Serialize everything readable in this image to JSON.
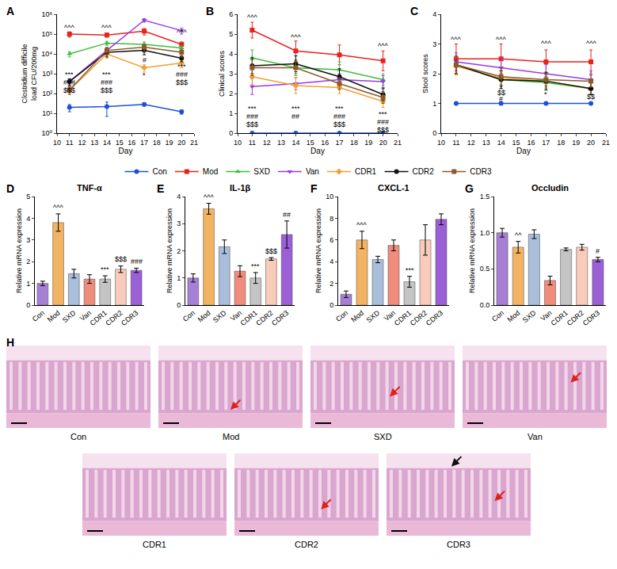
{
  "chart_data": [
    {
      "letter": "A",
      "type": "line",
      "xlabel": "Day",
      "ylabel": [
        "Clostridium difficile",
        "load CFU/200mg"
      ],
      "log": "y",
      "grid": false,
      "legend": "bottom",
      "xlim": [
        10,
        21
      ],
      "xticks": [
        10,
        11,
        12,
        13,
        14,
        15,
        16,
        17,
        18,
        19,
        20,
        21
      ],
      "ylim": [
        1,
        1000000
      ],
      "yticks": [
        {
          "value": 1,
          "label": "10⁰"
        },
        {
          "value": 10,
          "label": "10¹"
        },
        {
          "value": 100,
          "label": "10²"
        },
        {
          "value": 1000,
          "label": "10³"
        },
        {
          "value": 10000,
          "label": "10⁴"
        },
        {
          "value": 100000,
          "label": "10⁵"
        },
        {
          "value": 1000000,
          "label": "10⁶"
        }
      ],
      "x": [
        11,
        14,
        17,
        20
      ],
      "series": [
        {
          "name": "Con",
          "color": "#1f4fd8",
          "marker": "circle",
          "values": [
            20,
            22,
            28,
            12
          ],
          "errors": [
            8,
            15,
            5,
            3
          ]
        },
        {
          "name": "Mod",
          "color": "#e8231c",
          "marker": "square",
          "values": [
            100000,
            90000,
            140000,
            30000
          ],
          "errors": [
            30000,
            20000,
            50000,
            10000
          ]
        },
        {
          "name": "SXD",
          "color": "#3cbf3c",
          "marker": "triangle-up",
          "values": [
            10000,
            35000,
            30000,
            20000
          ],
          "errors": [
            3000,
            8000,
            10000,
            5000
          ]
        },
        {
          "name": "Van",
          "color": "#9b3be0",
          "marker": "triangle-down",
          "values": [
            400,
            15000,
            500000,
            150000
          ],
          "errors": [
            150,
            6000,
            100000,
            50000
          ]
        },
        {
          "name": "CDR1",
          "color": "#f0a030",
          "marker": "diamond",
          "values": [
            150,
            10000,
            2000,
            3500
          ],
          "errors": [
            60,
            4000,
            800,
            1500
          ]
        },
        {
          "name": "CDR2",
          "color": "#111111",
          "marker": "circle",
          "values": [
            400,
            12000,
            15000,
            6000
          ],
          "errors": [
            150,
            5000,
            6000,
            2000
          ]
        },
        {
          "name": "CDR3",
          "color": "#8b5a2b",
          "marker": "square",
          "values": [
            150,
            15000,
            22000,
            12000
          ],
          "errors": [
            60,
            6000,
            9000,
            5000
          ]
        }
      ],
      "annotations": [
        {
          "x": 11,
          "y": 200000,
          "text": "^^^"
        },
        {
          "x": 11,
          "y": 900,
          "text": "***"
        },
        {
          "x": 11,
          "y": 350,
          "text": "###"
        },
        {
          "x": 11,
          "y": 140,
          "text": "$$$"
        },
        {
          "x": 14,
          "y": 200000,
          "text": "^^^"
        },
        {
          "x": 14,
          "y": 900,
          "text": "***"
        },
        {
          "x": 14,
          "y": 350,
          "text": "###"
        },
        {
          "x": 14,
          "y": 140,
          "text": "$$$"
        },
        {
          "x": 17,
          "y": 5000,
          "text": "#"
        },
        {
          "x": 17,
          "y": 800,
          "text": "*"
        },
        {
          "x": 20,
          "y": 120000,
          "text": "^^^"
        },
        {
          "x": 20,
          "y": 2200,
          "text": "***"
        },
        {
          "x": 20,
          "y": 900,
          "text": "###"
        },
        {
          "x": 20,
          "y": 350,
          "text": "$$$"
        }
      ]
    },
    {
      "letter": "B",
      "type": "line",
      "xlabel": "Day",
      "ylabel": "Clinical scores",
      "grid": false,
      "xlim": [
        10,
        21
      ],
      "xticks": [
        10,
        11,
        12,
        13,
        14,
        15,
        16,
        17,
        18,
        19,
        20,
        21
      ],
      "ylim": [
        0,
        6
      ],
      "yticks": [
        0,
        1,
        2,
        3,
        4,
        5,
        6
      ],
      "x": [
        11,
        14,
        17,
        20
      ],
      "series": [
        {
          "name": "Con",
          "color": "#1f4fd8",
          "marker": "circle",
          "values": [
            0,
            0,
            0,
            0
          ],
          "errors": [
            0,
            0,
            0,
            0
          ]
        },
        {
          "name": "Mod",
          "color": "#e8231c",
          "marker": "square",
          "values": [
            5.2,
            4.15,
            3.95,
            3.65
          ],
          "errors": [
            0.4,
            0.5,
            0.5,
            0.5
          ]
        },
        {
          "name": "SXD",
          "color": "#3cbf3c",
          "marker": "triangle-up",
          "values": [
            3.8,
            3.3,
            3.2,
            2.7
          ],
          "errors": [
            0.4,
            0.4,
            0.4,
            0.3
          ]
        },
        {
          "name": "Van",
          "color": "#9b3be0",
          "marker": "triangle-down",
          "values": [
            2.35,
            2.5,
            2.7,
            2.6
          ],
          "errors": [
            0.4,
            0.3,
            0.3,
            0.3
          ]
        },
        {
          "name": "CDR1",
          "color": "#f0a030",
          "marker": "diamond",
          "values": [
            2.85,
            2.4,
            2.3,
            1.6
          ],
          "errors": [
            0.4,
            0.4,
            0.3,
            0.3
          ]
        },
        {
          "name": "CDR2",
          "color": "#111111",
          "marker": "circle",
          "values": [
            3.4,
            3.5,
            2.85,
            1.95
          ],
          "errors": [
            0.4,
            0.4,
            0.4,
            0.3
          ]
        },
        {
          "name": "CDR3",
          "color": "#8b5a2b",
          "marker": "square",
          "values": [
            3.3,
            3.3,
            2.5,
            1.8
          ],
          "errors": [
            0.4,
            0.3,
            0.3,
            0.3
          ]
        }
      ],
      "annotations": [
        {
          "x": 11,
          "y": 5.85,
          "text": "^^^"
        },
        {
          "x": 11,
          "y": 1.25,
          "text": "***"
        },
        {
          "x": 11,
          "y": 0.85,
          "text": "###"
        },
        {
          "x": 11,
          "y": 0.45,
          "text": "$$$"
        },
        {
          "x": 14,
          "y": 4.85,
          "text": "^^^"
        },
        {
          "x": 14,
          "y": 1.25,
          "text": "***"
        },
        {
          "x": 14,
          "y": 0.85,
          "text": "##"
        },
        {
          "x": 17,
          "y": 1.25,
          "text": "***"
        },
        {
          "x": 17,
          "y": 0.85,
          "text": "###"
        },
        {
          "x": 17,
          "y": 0.45,
          "text": "$$$"
        },
        {
          "x": 20,
          "y": 4.4,
          "text": "^^^"
        },
        {
          "x": 20,
          "y": 0.95,
          "text": "***"
        },
        {
          "x": 20,
          "y": 0.55,
          "text": "###"
        },
        {
          "x": 20,
          "y": 0.15,
          "text": "$$$"
        }
      ]
    },
    {
      "letter": "C",
      "type": "line",
      "xlabel": "Day",
      "ylabel": "Stool scores",
      "grid": false,
      "xlim": [
        10,
        21
      ],
      "xticks": [
        10,
        11,
        12,
        13,
        14,
        15,
        16,
        17,
        18,
        19,
        20,
        21
      ],
      "ylim": [
        0,
        4
      ],
      "yticks": [
        0,
        1,
        2,
        3,
        4
      ],
      "x": [
        11,
        14,
        17,
        20
      ],
      "series": [
        {
          "name": "Con",
          "color": "#1f4fd8",
          "marker": "circle",
          "values": [
            1,
            1,
            1,
            1
          ],
          "errors": [
            0,
            0,
            0,
            0
          ]
        },
        {
          "name": "Mod",
          "color": "#e8231c",
          "marker": "square",
          "values": [
            2.5,
            2.5,
            2.4,
            2.4
          ],
          "errors": [
            0.5,
            0.5,
            0.4,
            0.4
          ]
        },
        {
          "name": "SXD",
          "color": "#3cbf3c",
          "marker": "triangle-up",
          "values": [
            2.3,
            1.8,
            1.7,
            1.5
          ],
          "errors": [
            0.3,
            0.3,
            0.2,
            0.2
          ]
        },
        {
          "name": "Van",
          "color": "#9b3be0",
          "marker": "triangle-down",
          "values": [
            2.4,
            2.2,
            2.0,
            1.8
          ],
          "errors": [
            0.3,
            0.3,
            0.3,
            0.3
          ]
        },
        {
          "name": "CDR1",
          "color": "#f0a030",
          "marker": "diamond",
          "values": [
            2.25,
            1.85,
            1.75,
            1.5
          ],
          "errors": [
            0.3,
            0.2,
            0.2,
            0.2
          ]
        },
        {
          "name": "CDR2",
          "color": "#111111",
          "marker": "circle",
          "values": [
            2.3,
            1.8,
            1.75,
            1.5
          ],
          "errors": [
            0.3,
            0.3,
            0.3,
            0.2
          ]
        },
        {
          "name": "CDR3",
          "color": "#8b5a2b",
          "marker": "square",
          "values": [
            2.3,
            1.9,
            1.8,
            1.75
          ],
          "errors": [
            0.3,
            0.3,
            0.2,
            0.2
          ]
        }
      ],
      "annotations": [
        {
          "x": 11,
          "y": 3.15,
          "text": "^^^"
        },
        {
          "x": 14,
          "y": 3.15,
          "text": "^^^"
        },
        {
          "x": 17,
          "y": 3.0,
          "text": "^^^"
        },
        {
          "x": 20,
          "y": 3.0,
          "text": "^^^"
        },
        {
          "x": 14,
          "y": 1.55,
          "text": "*"
        },
        {
          "x": 14,
          "y": 1.35,
          "text": "$$"
        },
        {
          "x": 14,
          "y": 1.15,
          "text": "#"
        },
        {
          "x": 17,
          "y": 1.3,
          "text": "*"
        },
        {
          "x": 20,
          "y": 1.45,
          "text": "**"
        },
        {
          "x": 20,
          "y": 1.22,
          "text": "$$"
        }
      ]
    },
    {
      "letter": "D",
      "type": "bar",
      "title": "TNF-α",
      "ylabel": "Relative mRNA expression",
      "grid": false,
      "categories": [
        "Con",
        "Mod",
        "SXD",
        "Van",
        "CDR1",
        "CDR2",
        "CDR3"
      ],
      "values": [
        1.0,
        3.8,
        1.45,
        1.2,
        1.2,
        1.65,
        1.6
      ],
      "errors": [
        0.1,
        0.4,
        0.2,
        0.2,
        0.15,
        0.15,
        0.1
      ],
      "colors": [
        "#a67fd6",
        "#f2b463",
        "#a9bedb",
        "#f08c7c",
        "#c4c4c4",
        "#f8cbbb",
        "#9b5fd6"
      ],
      "ylim": [
        0,
        5
      ],
      "yticks": [
        0,
        1,
        2,
        3,
        4,
        5
      ],
      "annotations": [
        {
          "category": "Mod",
          "y": 4.25,
          "text": "^^^"
        },
        {
          "category": "CDR1",
          "y": 1.4,
          "text": "***"
        },
        {
          "category": "CDR2",
          "y": 1.85,
          "text": "$$$"
        },
        {
          "category": "CDR3",
          "y": 1.75,
          "text": "###"
        }
      ]
    },
    {
      "letter": "E",
      "type": "bar",
      "title": "IL-1β",
      "ylabel": "Relative mRNA expression",
      "grid": false,
      "categories": [
        "Con",
        "Mod",
        "SXD",
        "Van",
        "CDR1",
        "CDR2",
        "CDR3"
      ],
      "values": [
        1.0,
        3.55,
        2.15,
        1.25,
        1.0,
        1.7,
        2.6
      ],
      "errors": [
        0.15,
        0.2,
        0.25,
        0.2,
        0.2,
        0.05,
        0.5
      ],
      "colors": [
        "#a67fd6",
        "#f2b463",
        "#a9bedb",
        "#f08c7c",
        "#c4c4c4",
        "#f8cbbb",
        "#9b5fd6"
      ],
      "ylim": [
        0,
        4
      ],
      "yticks": [
        0,
        1,
        2,
        3,
        4
      ],
      "annotations": [
        {
          "category": "Mod",
          "y": 3.78,
          "text": "^^^"
        },
        {
          "category": "CDR1",
          "y": 1.22,
          "text": "***"
        },
        {
          "category": "CDR2",
          "y": 1.78,
          "text": "$$$"
        },
        {
          "category": "CDR3",
          "y": 3.12,
          "text": "##"
        }
      ]
    },
    {
      "letter": "F",
      "type": "bar",
      "title": "CXCL-1",
      "ylabel": "Relative mRNA expression",
      "grid": false,
      "categories": [
        "Con",
        "Mod",
        "SXD",
        "Van",
        "CDR1",
        "CDR2",
        "CDR3"
      ],
      "values": [
        1.0,
        6.0,
        4.2,
        5.5,
        2.15,
        6.0,
        7.9
      ],
      "errors": [
        0.3,
        0.8,
        0.3,
        0.5,
        0.5,
        1.4,
        0.5
      ],
      "colors": [
        "#a67fd6",
        "#f2b463",
        "#a9bedb",
        "#f08c7c",
        "#c4c4c4",
        "#f8cbbb",
        "#9b5fd6"
      ],
      "ylim": [
        0,
        10
      ],
      "yticks": [
        0,
        2,
        4,
        6,
        8,
        10
      ],
      "annotations": [
        {
          "category": "Mod",
          "y": 6.85,
          "text": "^^^"
        },
        {
          "category": "CDR1",
          "y": 2.7,
          "text": "***"
        }
      ]
    },
    {
      "letter": "G",
      "type": "bar",
      "title": "Occludin",
      "ylabel": "Relative mRNA expression",
      "grid": false,
      "categories": [
        "Con",
        "Mod",
        "SXD",
        "Van",
        "CDR1",
        "CDR2",
        "CDR3"
      ],
      "values": [
        1.0,
        0.8,
        0.98,
        0.34,
        0.77,
        0.8,
        0.63
      ],
      "errors": [
        0.06,
        0.08,
        0.06,
        0.06,
        0.02,
        0.04,
        0.03
      ],
      "colors": [
        "#a67fd6",
        "#f2b463",
        "#a9bedb",
        "#f08c7c",
        "#c4c4c4",
        "#f8cbbb",
        "#9b5fd6"
      ],
      "ylim": [
        0,
        1.5
      ],
      "yticks": [
        {
          "value": 0,
          "label": "0.0"
        },
        0.5,
        {
          "value": 1,
          "label": "1.0"
        },
        1.5
      ],
      "annotations": [
        {
          "category": "Mod",
          "y": 0.89,
          "text": "^^"
        },
        {
          "category": "CDR3",
          "y": 0.67,
          "text": "#"
        }
      ]
    }
  ],
  "panel_H": {
    "letter": "H",
    "images": [
      "Con",
      "Mod",
      "SXD",
      "Van",
      "CDR1",
      "CDR2",
      "CDR3"
    ]
  }
}
